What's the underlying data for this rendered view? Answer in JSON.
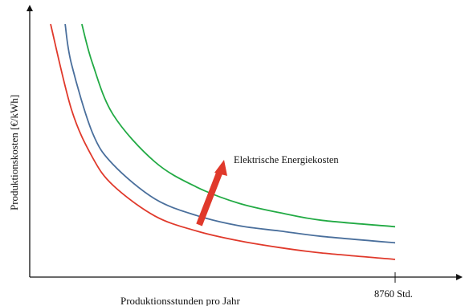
{
  "chart_data": {
    "type": "line",
    "title": "",
    "xlabel": "Produktionsstunden pro Jahr",
    "ylabel": "Produktionskosten [€/kWh]",
    "x_tick_label": "8760 Std.",
    "x_tick_value": 8760,
    "annotation": "Elektrische Energiekosten",
    "grid": false,
    "legend": "none",
    "series": [
      {
        "color": "#e0392b",
        "x": [
          500,
          1000,
          1500,
          2000,
          3000,
          4000,
          5000,
          6000,
          7000,
          8760
        ],
        "y": [
          4.72,
          3.13,
          2.24,
          1.71,
          1.14,
          0.86,
          0.68,
          0.55,
          0.45,
          0.33
        ]
      },
      {
        "color": "#4a6f9c",
        "x": [
          850,
          1000,
          1500,
          2000,
          3000,
          4000,
          5000,
          6000,
          7000,
          8760
        ],
        "y": [
          4.72,
          3.98,
          2.7,
          2.1,
          1.46,
          1.15,
          0.96,
          0.86,
          0.76,
          0.64
        ]
      },
      {
        "color": "#22aa44",
        "x": [
          1250,
          1500,
          2000,
          3000,
          4000,
          5000,
          6000,
          7000,
          8760
        ],
        "y": [
          4.72,
          4.0,
          3.03,
          2.15,
          1.68,
          1.38,
          1.2,
          1.06,
          0.94
        ]
      }
    ]
  }
}
